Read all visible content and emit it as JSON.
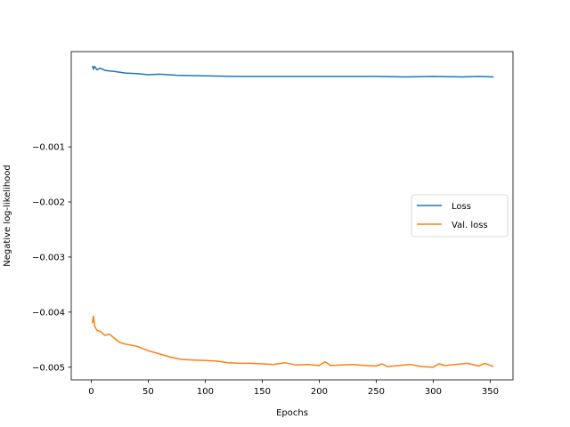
{
  "chart_data": {
    "type": "line",
    "title": "",
    "xlabel": "Epochs",
    "ylabel": "Negative log-likelihood",
    "xlim": [
      -17.5,
      370
    ],
    "ylim": [
      -0.00523,
      0.00073
    ],
    "xticks": [
      0,
      50,
      100,
      150,
      200,
      250,
      300,
      350
    ],
    "xtick_labels": [
      "0",
      "50",
      "100",
      "150",
      "200",
      "250",
      "300",
      "350"
    ],
    "yticks": [
      -0.001,
      -0.002,
      -0.003,
      -0.004,
      -0.005
    ],
    "ytick_labels": [
      "−0.001",
      "−0.002",
      "−0.003",
      "−0.004",
      "−0.005"
    ],
    "grid": false,
    "legend_position": "center-right",
    "series": [
      {
        "name": "Loss",
        "color": "#1f77b4",
        "points": [
          [
            1,
            0.00047
          ],
          [
            2,
            0.00041
          ],
          [
            3,
            0.00046
          ],
          [
            5,
            0.0004
          ],
          [
            8,
            0.00043
          ],
          [
            12,
            0.00039
          ],
          [
            20,
            0.00037
          ],
          [
            30,
            0.00034
          ],
          [
            40,
            0.00033
          ],
          [
            50,
            0.00031
          ],
          [
            60,
            0.00032
          ],
          [
            75,
            0.0003
          ],
          [
            100,
            0.00029
          ],
          [
            125,
            0.00028
          ],
          [
            150,
            0.00028
          ],
          [
            175,
            0.00028
          ],
          [
            200,
            0.00028
          ],
          [
            225,
            0.00028
          ],
          [
            250,
            0.00028
          ],
          [
            275,
            0.00027
          ],
          [
            300,
            0.00028
          ],
          [
            325,
            0.00027
          ],
          [
            340,
            0.00028
          ],
          [
            353,
            0.00027
          ]
        ]
      },
      {
        "name": "Val. loss",
        "color": "#ff7f0e",
        "points": [
          [
            1,
            -0.0042
          ],
          [
            2,
            -0.00407
          ],
          [
            3,
            -0.00425
          ],
          [
            5,
            -0.00433
          ],
          [
            8,
            -0.00435
          ],
          [
            12,
            -0.00442
          ],
          [
            16,
            -0.0044
          ],
          [
            20,
            -0.00447
          ],
          [
            25,
            -0.00455
          ],
          [
            30,
            -0.00458
          ],
          [
            40,
            -0.00462
          ],
          [
            50,
            -0.0047
          ],
          [
            60,
            -0.00476
          ],
          [
            70,
            -0.00482
          ],
          [
            80,
            -0.00486
          ],
          [
            90,
            -0.00487
          ],
          [
            100,
            -0.00488
          ],
          [
            110,
            -0.00489
          ],
          [
            120,
            -0.00492
          ],
          [
            130,
            -0.00493
          ],
          [
            140,
            -0.00493
          ],
          [
            150,
            -0.00494
          ],
          [
            160,
            -0.00495
          ],
          [
            170,
            -0.00492
          ],
          [
            180,
            -0.00496
          ],
          [
            190,
            -0.00495
          ],
          [
            200,
            -0.00497
          ],
          [
            205,
            -0.0049
          ],
          [
            210,
            -0.00497
          ],
          [
            220,
            -0.00496
          ],
          [
            230,
            -0.00495
          ],
          [
            240,
            -0.00497
          ],
          [
            250,
            -0.00498
          ],
          [
            255,
            -0.00494
          ],
          [
            260,
            -0.00499
          ],
          [
            270,
            -0.00497
          ],
          [
            280,
            -0.00495
          ],
          [
            290,
            -0.00499
          ],
          [
            300,
            -0.005
          ],
          [
            305,
            -0.00494
          ],
          [
            310,
            -0.00497
          ],
          [
            320,
            -0.00495
          ],
          [
            330,
            -0.00493
          ],
          [
            340,
            -0.00498
          ],
          [
            345,
            -0.00493
          ],
          [
            353,
            -0.00499
          ]
        ]
      }
    ]
  }
}
